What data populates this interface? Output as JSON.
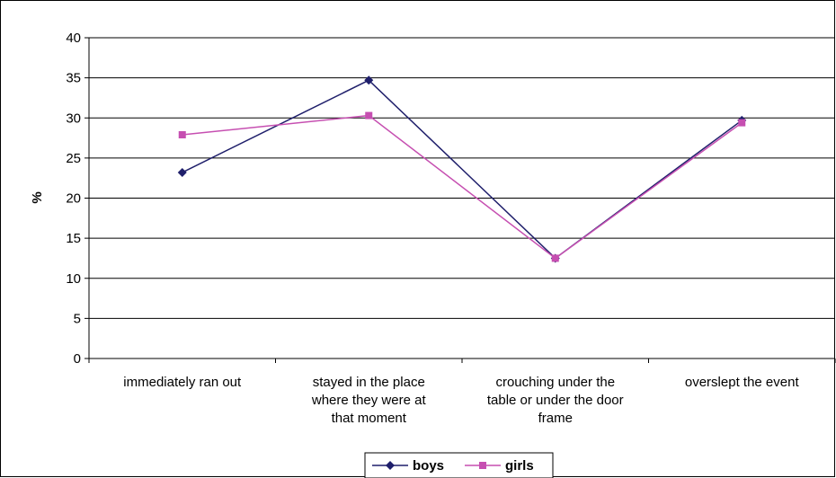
{
  "chart_data": {
    "type": "line",
    "categories": [
      [
        "immediately ran out"
      ],
      [
        "stayed in the place",
        "where they were at",
        "that moment"
      ],
      [
        "crouching under the",
        "table or under the door",
        "frame"
      ],
      [
        "overslept the event"
      ]
    ],
    "series": [
      {
        "name": "boys",
        "values": [
          23.2,
          34.7,
          12.5,
          29.7
        ],
        "color": "#1f1f6b",
        "marker": "diamond"
      },
      {
        "name": "girls",
        "values": [
          27.9,
          30.3,
          12.5,
          29.4
        ],
        "color": "#c64fb1",
        "marker": "square"
      }
    ],
    "title": "",
    "xlabel": "",
    "ylabel": "%",
    "ylim": [
      0,
      40
    ],
    "yticks": [
      0,
      5,
      10,
      15,
      20,
      25,
      30,
      35,
      40
    ],
    "grid": true,
    "legend_position": "bottom"
  }
}
